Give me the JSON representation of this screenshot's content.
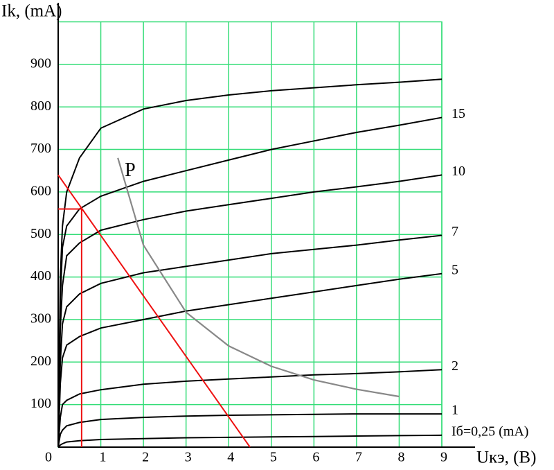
{
  "chart_data": {
    "type": "line",
    "y_label": "Ik, (mA)",
    "x_label": "Uкэ, (В)",
    "xlim": [
      0,
      9
    ],
    "ylim": [
      0,
      1000
    ],
    "xticks": [
      0,
      1,
      2,
      3,
      4,
      5,
      6,
      7,
      8,
      9
    ],
    "yticks": [
      100,
      200,
      300,
      400,
      500,
      600,
      700,
      800,
      900
    ],
    "grid": true,
    "grid_color": "#33dd77",
    "x": [
      0,
      0.05,
      0.1,
      0.2,
      0.5,
      1,
      2,
      3,
      4,
      5,
      6,
      7,
      8,
      9
    ],
    "series": [
      {
        "name": "Iб=0,25 (mA)",
        "color": "#000000",
        "values": [
          0,
          5,
          8,
          12,
          15,
          18,
          20,
          22,
          23,
          24,
          25,
          26,
          27,
          28
        ]
      },
      {
        "name": "1",
        "color": "#000000",
        "values": [
          0,
          30,
          40,
          50,
          58,
          65,
          70,
          73,
          75,
          76,
          77,
          78,
          78,
          78
        ]
      },
      {
        "name": "2",
        "color": "#000000",
        "values": [
          0,
          70,
          100,
          110,
          125,
          135,
          148,
          155,
          160,
          165,
          170,
          173,
          177,
          182
        ]
      },
      {
        "name": "5",
        "color": "#000000",
        "values": [
          0,
          150,
          210,
          240,
          260,
          280,
          300,
          320,
          335,
          350,
          365,
          380,
          395,
          408
        ]
      },
      {
        "name": "7",
        "color": "#000000",
        "values": [
          0,
          200,
          290,
          330,
          360,
          385,
          410,
          425,
          440,
          455,
          465,
          475,
          487,
          498
        ]
      },
      {
        "name": "10",
        "color": "#000000",
        "values": [
          0,
          280,
          380,
          450,
          480,
          510,
          535,
          555,
          570,
          585,
          600,
          612,
          625,
          640
        ]
      },
      {
        "name": "15",
        "color": "#000000",
        "values": [
          0,
          350,
          470,
          520,
          560,
          590,
          625,
          650,
          675,
          700,
          720,
          740,
          757,
          775
        ]
      },
      {
        "color": "#000000",
        "values": [
          0,
          400,
          520,
          600,
          680,
          750,
          795,
          815,
          828,
          838,
          845,
          852,
          858,
          865
        ]
      }
    ],
    "power_curve": {
      "label": "P",
      "color": "#888888",
      "x": [
        1.4,
        2,
        3,
        4,
        5,
        6,
        7,
        8
      ],
      "values": [
        680,
        475,
        317,
        238,
        190,
        158,
        136,
        119
      ]
    },
    "load_line": {
      "color": "#ee1111",
      "x": [
        0,
        4.5
      ],
      "values": [
        640,
        0
      ]
    },
    "operating_point": {
      "color": "#ee1111",
      "x": 0.55,
      "y": 560
    }
  }
}
